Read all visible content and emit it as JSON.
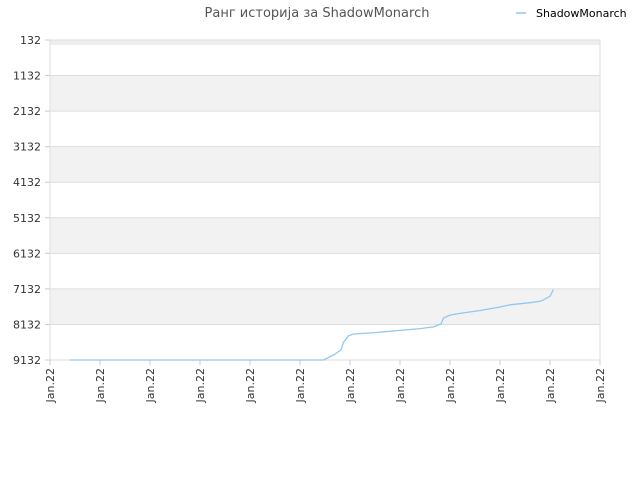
{
  "chart_data": {
    "type": "line",
    "title": "Ранг историја за ShadowMonarch",
    "xlabel": "",
    "ylabel": "",
    "y_inverted": true,
    "ylim": [
      132,
      9132
    ],
    "y_ticks": [
      "132",
      "1132",
      "2132",
      "3132",
      "4132",
      "5132",
      "6132",
      "7132",
      "8132",
      "9132"
    ],
    "x_ticks": [
      "Jan.22",
      "Jan.22",
      "Jan.22",
      "Jan.22",
      "Jan.22",
      "Jan.22",
      "Jan.22",
      "Jan.22",
      "Jan.22",
      "Jan.22",
      "Jan.22",
      "Jan.22"
    ],
    "grid": "horizontal alternating bands",
    "legend_position": "top-right",
    "series": [
      {
        "name": "ShadowMonarch",
        "color": "#90c8f0",
        "points": [
          [
            0.4,
            9132
          ],
          [
            5.47,
            9132
          ],
          [
            5.67,
            8990
          ],
          [
            5.82,
            8850
          ],
          [
            5.87,
            8630
          ],
          [
            5.97,
            8450
          ],
          [
            6.07,
            8400
          ],
          [
            6.5,
            8360
          ],
          [
            7.0,
            8300
          ],
          [
            7.4,
            8250
          ],
          [
            7.67,
            8200
          ],
          [
            7.82,
            8120
          ],
          [
            7.87,
            7950
          ],
          [
            8.0,
            7870
          ],
          [
            8.2,
            7820
          ],
          [
            8.6,
            7740
          ],
          [
            9.0,
            7640
          ],
          [
            9.2,
            7580
          ],
          [
            9.6,
            7520
          ],
          [
            9.8,
            7480
          ],
          [
            9.87,
            7440
          ],
          [
            10.0,
            7340
          ],
          [
            10.07,
            7150
          ]
        ]
      }
    ]
  },
  "colors": {
    "band": "#f2f2f2",
    "gridline": "#dddddd",
    "axis": "#cccccc"
  }
}
